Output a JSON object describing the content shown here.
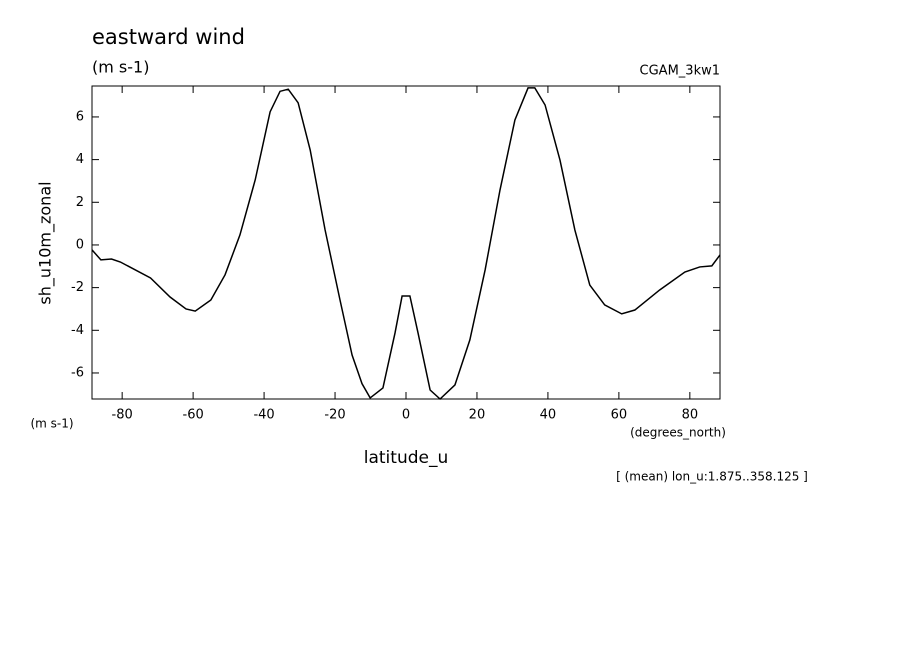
{
  "chart_data": {
    "type": "line",
    "title": "eastward wind",
    "subtitle": "(m s-1)",
    "dataset": "CGAM_3kw1",
    "y_label": "sh_u10m_zonal",
    "y_units": "(m s-1)",
    "x_label": "latitude_u",
    "x_units": "(degrees_north)",
    "annotation": "[ (mean) lon_u:1.875..358.125 ]",
    "x": [
      -88.5,
      -86,
      -83,
      -80.5,
      -72,
      -66.5,
      -62,
      -59.4,
      -55,
      -51,
      -46.8,
      -42.5,
      -38.3,
      -35.5,
      -33.2,
      -30.4,
      -27,
      -22.8,
      -18.6,
      -15.2,
      -12.4,
      -10.1,
      -6.5,
      -3.1,
      -1.1,
      1.1,
      3.4,
      6.8,
      9.6,
      13.8,
      18,
      22.3,
      26.5,
      30.7,
      34.4,
      36.3,
      39.2,
      43.4,
      47.6,
      51.8,
      56,
      60.8,
      64.5,
      71.5,
      78.6,
      82.8,
      86.2,
      88.5
    ],
    "series": [
      {
        "name": "sh_u10m_zonal",
        "color": "#000000",
        "values": [
          -0.23,
          -0.7,
          -0.66,
          -0.8,
          -1.55,
          -2.44,
          -3.0,
          -3.1,
          -2.58,
          -1.4,
          0.47,
          3.05,
          6.24,
          7.2,
          7.3,
          6.66,
          4.45,
          0.7,
          -2.58,
          -5.16,
          -6.5,
          -7.17,
          -6.7,
          -4.13,
          -2.39,
          -2.39,
          -4.13,
          -6.8,
          -7.22,
          -6.56,
          -4.45,
          -1.17,
          2.58,
          5.86,
          7.36,
          7.36,
          6.56,
          3.98,
          0.7,
          -1.88,
          -2.81,
          -3.23,
          -3.05,
          -2.11,
          -1.27,
          -1.03,
          -0.98,
          -0.47
        ]
      }
    ],
    "xlim": [
      -88.5,
      88.5
    ],
    "ylim": [
      -7.22,
      7.45
    ],
    "xticks": [
      -80,
      -60,
      -40,
      -20,
      0,
      20,
      40,
      60,
      80
    ],
    "yticks": [
      -6,
      -4,
      -2,
      0,
      2,
      4,
      6
    ],
    "grid": false
  }
}
